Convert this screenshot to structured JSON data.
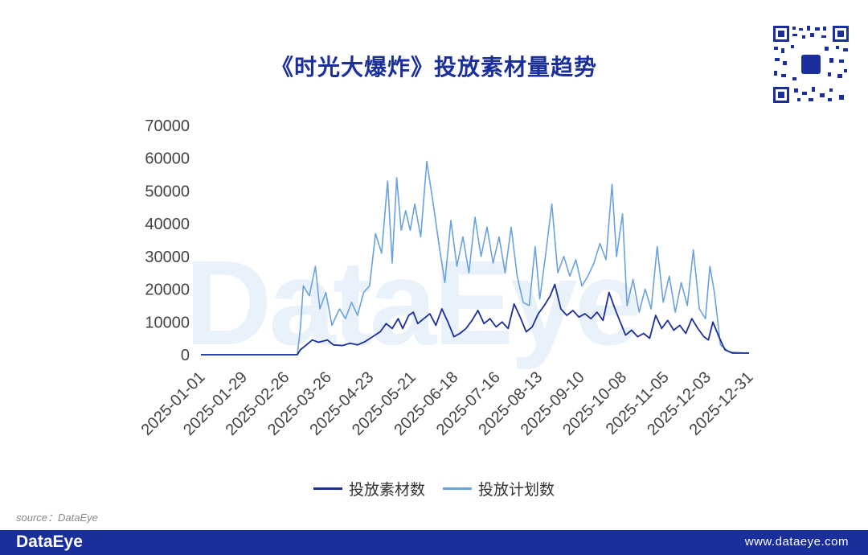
{
  "title": "《时光大爆炸》投放素材量趋势",
  "watermark": "DataEye",
  "source": "source：DataEye",
  "footer": {
    "logo": "DataEye",
    "url": "www.dataeye.com"
  },
  "colors": {
    "series1": "#1a2f9c",
    "series2": "#6aa2dc",
    "footer_bg": "#1a2f9c",
    "title": "#1b2f9b"
  },
  "chart_data": {
    "type": "line",
    "title": "《时光大爆炸》投放素材量趋势",
    "ylim": [
      0,
      70000
    ],
    "yticks": [
      0,
      10000,
      20000,
      30000,
      40000,
      50000,
      60000,
      70000
    ],
    "xtick_labels": [
      "2025-01-01",
      "2025-01-29",
      "2025-02-26",
      "2025-03-26",
      "2025-04-23",
      "2025-05-21",
      "2025-06-18",
      "2025-07-16",
      "2025-08-13",
      "2025-09-10",
      "2025-10-08",
      "2025-11-05",
      "2025-12-03",
      "2025-12-31"
    ],
    "legend_position": "bottom",
    "grid": false,
    "series": [
      {
        "name": "投放素材数",
        "points": [
          [
            "2025-01-01",
            0
          ],
          [
            "2025-03-06",
            0
          ],
          [
            "2025-03-08",
            1500
          ],
          [
            "2025-03-12",
            3000
          ],
          [
            "2025-03-16",
            4500
          ],
          [
            "2025-03-20",
            3800
          ],
          [
            "2025-03-26",
            4500
          ],
          [
            "2025-03-30",
            3000
          ],
          [
            "2025-04-05",
            2800
          ],
          [
            "2025-04-10",
            3500
          ],
          [
            "2025-04-15",
            3000
          ],
          [
            "2025-04-20",
            4000
          ],
          [
            "2025-04-25",
            5500
          ],
          [
            "2025-04-30",
            7000
          ],
          [
            "2025-05-04",
            9500
          ],
          [
            "2025-05-08",
            8000
          ],
          [
            "2025-05-12",
            11000
          ],
          [
            "2025-05-15",
            8000
          ],
          [
            "2025-05-19",
            12000
          ],
          [
            "2025-05-22",
            13000
          ],
          [
            "2025-05-25",
            9500
          ],
          [
            "2025-05-29",
            11000
          ],
          [
            "2025-06-02",
            12500
          ],
          [
            "2025-06-06",
            9000
          ],
          [
            "2025-06-10",
            14000
          ],
          [
            "2025-06-14",
            10000
          ],
          [
            "2025-06-18",
            5500
          ],
          [
            "2025-06-22",
            6500
          ],
          [
            "2025-06-26",
            8000
          ],
          [
            "2025-06-30",
            10500
          ],
          [
            "2025-07-04",
            13500
          ],
          [
            "2025-07-08",
            9500
          ],
          [
            "2025-07-12",
            11000
          ],
          [
            "2025-07-16",
            8500
          ],
          [
            "2025-07-20",
            10000
          ],
          [
            "2025-07-24",
            8000
          ],
          [
            "2025-07-28",
            15500
          ],
          [
            "2025-08-01",
            11500
          ],
          [
            "2025-08-05",
            7000
          ],
          [
            "2025-08-09",
            8500
          ],
          [
            "2025-08-13",
            12500
          ],
          [
            "2025-08-17",
            15000
          ],
          [
            "2025-08-21",
            18000
          ],
          [
            "2025-08-24",
            21500
          ],
          [
            "2025-08-28",
            14000
          ],
          [
            "2025-09-01",
            12000
          ],
          [
            "2025-09-05",
            13500
          ],
          [
            "2025-09-09",
            11500
          ],
          [
            "2025-09-13",
            12500
          ],
          [
            "2025-09-17",
            11000
          ],
          [
            "2025-09-21",
            13000
          ],
          [
            "2025-09-25",
            10500
          ],
          [
            "2025-09-29",
            19000
          ],
          [
            "2025-10-03",
            14000
          ],
          [
            "2025-10-06",
            10500
          ],
          [
            "2025-10-10",
            6000
          ],
          [
            "2025-10-14",
            7500
          ],
          [
            "2025-10-18",
            5500
          ],
          [
            "2025-10-22",
            6500
          ],
          [
            "2025-10-26",
            5000
          ],
          [
            "2025-10-30",
            12000
          ],
          [
            "2025-11-03",
            8000
          ],
          [
            "2025-11-07",
            10500
          ],
          [
            "2025-11-11",
            7500
          ],
          [
            "2025-11-15",
            9000
          ],
          [
            "2025-11-19",
            6500
          ],
          [
            "2025-11-23",
            11000
          ],
          [
            "2025-11-27",
            8000
          ],
          [
            "2025-12-01",
            5500
          ],
          [
            "2025-12-04",
            4500
          ],
          [
            "2025-12-07",
            10000
          ],
          [
            "2025-12-11",
            5500
          ],
          [
            "2025-12-15",
            1500
          ],
          [
            "2025-12-20",
            500
          ],
          [
            "2025-12-31",
            500
          ]
        ]
      },
      {
        "name": "投放计划数",
        "points": [
          [
            "2025-01-01",
            0
          ],
          [
            "2025-03-06",
            0
          ],
          [
            "2025-03-08",
            8000
          ],
          [
            "2025-03-10",
            21000
          ],
          [
            "2025-03-14",
            18000
          ],
          [
            "2025-03-18",
            27000
          ],
          [
            "2025-03-21",
            14000
          ],
          [
            "2025-03-25",
            19000
          ],
          [
            "2025-03-29",
            9000
          ],
          [
            "2025-04-03",
            14000
          ],
          [
            "2025-04-07",
            11000
          ],
          [
            "2025-04-11",
            16000
          ],
          [
            "2025-04-15",
            12000
          ],
          [
            "2025-04-19",
            19000
          ],
          [
            "2025-04-23",
            21000
          ],
          [
            "2025-04-27",
            37000
          ],
          [
            "2025-05-01",
            31000
          ],
          [
            "2025-05-05",
            53000
          ],
          [
            "2025-05-08",
            28000
          ],
          [
            "2025-05-11",
            54000
          ],
          [
            "2025-05-14",
            38000
          ],
          [
            "2025-05-17",
            44000
          ],
          [
            "2025-05-20",
            38000
          ],
          [
            "2025-05-23",
            46000
          ],
          [
            "2025-05-27",
            36000
          ],
          [
            "2025-05-31",
            59000
          ],
          [
            "2025-06-04",
            47000
          ],
          [
            "2025-06-08",
            34000
          ],
          [
            "2025-06-12",
            22000
          ],
          [
            "2025-06-16",
            41000
          ],
          [
            "2025-06-20",
            27000
          ],
          [
            "2025-06-24",
            36000
          ],
          [
            "2025-06-28",
            25000
          ],
          [
            "2025-07-02",
            42000
          ],
          [
            "2025-07-06",
            30000
          ],
          [
            "2025-07-10",
            39000
          ],
          [
            "2025-07-14",
            28000
          ],
          [
            "2025-07-18",
            36000
          ],
          [
            "2025-07-22",
            25000
          ],
          [
            "2025-07-26",
            39000
          ],
          [
            "2025-07-30",
            24000
          ],
          [
            "2025-08-03",
            16000
          ],
          [
            "2025-08-07",
            15000
          ],
          [
            "2025-08-11",
            33000
          ],
          [
            "2025-08-14",
            17000
          ],
          [
            "2025-08-18",
            31000
          ],
          [
            "2025-08-22",
            46000
          ],
          [
            "2025-08-26",
            25000
          ],
          [
            "2025-08-30",
            30000
          ],
          [
            "2025-09-03",
            24000
          ],
          [
            "2025-09-07",
            29000
          ],
          [
            "2025-09-11",
            21000
          ],
          [
            "2025-09-15",
            24000
          ],
          [
            "2025-09-19",
            28000
          ],
          [
            "2025-09-23",
            34000
          ],
          [
            "2025-09-27",
            29000
          ],
          [
            "2025-10-01",
            52000
          ],
          [
            "2025-10-04",
            30000
          ],
          [
            "2025-10-08",
            43000
          ],
          [
            "2025-10-11",
            15000
          ],
          [
            "2025-10-15",
            23000
          ],
          [
            "2025-10-19",
            13000
          ],
          [
            "2025-10-23",
            20000
          ],
          [
            "2025-10-27",
            14000
          ],
          [
            "2025-10-31",
            33000
          ],
          [
            "2025-11-04",
            16000
          ],
          [
            "2025-11-08",
            24000
          ],
          [
            "2025-11-12",
            13000
          ],
          [
            "2025-11-16",
            22000
          ],
          [
            "2025-11-20",
            15000
          ],
          [
            "2025-11-24",
            32000
          ],
          [
            "2025-11-28",
            14000
          ],
          [
            "2025-12-02",
            11000
          ],
          [
            "2025-12-05",
            27000
          ],
          [
            "2025-12-08",
            19000
          ],
          [
            "2025-12-12",
            3000
          ],
          [
            "2025-12-18",
            800
          ],
          [
            "2025-12-31",
            500
          ]
        ]
      }
    ]
  }
}
